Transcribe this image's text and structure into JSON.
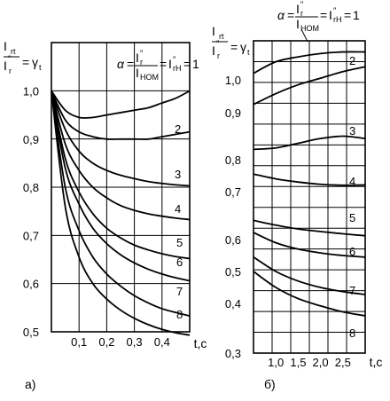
{
  "chart_data": [
    {
      "type": "line",
      "panel_label": "а)",
      "y_label": {
        "num": "I",
        "num_sub": "rt",
        "den": "I",
        "den_sup": "″",
        "den_sub": "r",
        "rhs": "γ",
        "rhs_sub": "t"
      },
      "legend": {
        "alpha": "α",
        "num": "I",
        "num_sup": "″",
        "num_sub": "r",
        "den": "I",
        "den_sub": "НОМ",
        "mid": "I",
        "mid_sup": "″",
        "mid_sub": "rН",
        "value": "1"
      },
      "x_unit": "t,c",
      "xlim": [
        0,
        0.5
      ],
      "ylim": [
        0.5,
        1.05
      ],
      "x_ticks": [
        0.1,
        0.2,
        0.3,
        0.4
      ],
      "x_tick_labels": [
        "0,1",
        "0,2",
        "0,3",
        "0,4"
      ],
      "y_ticks": [
        0.5,
        0.6,
        0.7,
        0.8,
        0.9,
        1.0
      ],
      "y_tick_labels": [
        "0,5",
        "0,6",
        "0,7",
        "0,8",
        "0,9",
        "1,0"
      ],
      "series": [
        {
          "x": [
            0,
            0.05,
            0.1,
            0.15,
            0.2,
            0.25,
            0.3,
            0.35,
            0.4,
            0.45,
            0.5
          ],
          "y": [
            1.0,
            0.96,
            0.945,
            0.945,
            0.95,
            0.955,
            0.96,
            0.965,
            0.975,
            0.985,
            1.0
          ]
        },
        {
          "name": "2",
          "x": [
            0,
            0.05,
            0.1,
            0.15,
            0.2,
            0.25,
            0.3,
            0.35,
            0.4,
            0.45,
            0.5
          ],
          "y": [
            1.0,
            0.94,
            0.915,
            0.905,
            0.9,
            0.9,
            0.9,
            0.9,
            0.905,
            0.91,
            0.915
          ]
        },
        {
          "name": "3",
          "x": [
            0,
            0.05,
            0.1,
            0.15,
            0.2,
            0.25,
            0.3,
            0.35,
            0.4,
            0.45,
            0.5
          ],
          "y": [
            1.0,
            0.92,
            0.875,
            0.85,
            0.835,
            0.825,
            0.818,
            0.812,
            0.808,
            0.805,
            0.803
          ]
        },
        {
          "name": "4",
          "x": [
            0,
            0.05,
            0.1,
            0.15,
            0.2,
            0.25,
            0.3,
            0.35,
            0.4,
            0.45,
            0.5
          ],
          "y": [
            1.0,
            0.89,
            0.835,
            0.8,
            0.778,
            0.762,
            0.752,
            0.745,
            0.74,
            0.736,
            0.733
          ]
        },
        {
          "name": "5",
          "x": [
            0,
            0.05,
            0.1,
            0.15,
            0.2,
            0.25,
            0.3,
            0.35,
            0.4,
            0.45,
            0.5
          ],
          "y": [
            1.0,
            0.86,
            0.79,
            0.745,
            0.715,
            0.695,
            0.68,
            0.67,
            0.662,
            0.656,
            0.652
          ]
        },
        {
          "name": "6",
          "x": [
            0,
            0.05,
            0.1,
            0.15,
            0.2,
            0.25,
            0.3,
            0.35,
            0.4,
            0.45,
            0.5
          ],
          "y": [
            1.0,
            0.84,
            0.765,
            0.715,
            0.683,
            0.66,
            0.643,
            0.63,
            0.62,
            0.612,
            0.606
          ]
        },
        {
          "name": "7",
          "x": [
            0,
            0.05,
            0.1,
            0.15,
            0.2,
            0.25,
            0.3,
            0.35,
            0.4,
            0.45,
            0.5
          ],
          "y": [
            1.0,
            0.8,
            0.71,
            0.655,
            0.62,
            0.595,
            0.575,
            0.56,
            0.548,
            0.54,
            0.533
          ]
        },
        {
          "name": "8",
          "x": [
            0,
            0.05,
            0.1,
            0.15,
            0.2,
            0.25,
            0.3,
            0.35,
            0.4,
            0.45,
            0.5
          ],
          "y": [
            1.0,
            0.76,
            0.655,
            0.6,
            0.568,
            0.545,
            0.528,
            0.515,
            0.505,
            0.498,
            0.493
          ]
        }
      ]
    },
    {
      "type": "line",
      "panel_label": "б)",
      "y_label": {
        "num": "I",
        "num_sub": "rt",
        "den": "I",
        "den_sup": "″",
        "den_sub": "r",
        "rhs": "γ",
        "rhs_sub": "t"
      },
      "legend": {
        "alpha": "α",
        "num": "I",
        "num_sup": "″",
        "num_sub": "r",
        "den": "I",
        "den_sub": "НОМ",
        "mid": "I",
        "mid_sup": "″",
        "mid_sub": "rН",
        "value": "1"
      },
      "x_unit": "t,c",
      "xlim": [
        0.5,
        3.0
      ],
      "x_ticks": [
        1.0,
        1.5,
        2.0,
        2.5
      ],
      "x_tick_labels": [
        "1,0",
        "1,5",
        "2,0",
        "2,5"
      ],
      "y_note": "Curve groups are vertically offset; each printed y tick label applies to the band beside it (upper group labels 1,0 0,9 0,8 0,7; lower group labels 0,6 0,5 0,4 0,3).",
      "y_tick_labels": [
        "1,0",
        "0,9",
        "0,8",
        "0,7",
        "0,6",
        "0,5",
        "0,4",
        "0,3"
      ],
      "series": [
        {
          "x": [
            0.5,
            1.0,
            1.5,
            2.0,
            2.5,
            3.0
          ],
          "y": [
            1.02,
            1.055,
            1.07,
            1.08,
            1.085,
            1.085
          ]
        },
        {
          "name": "2",
          "x": [
            0.5,
            1.0,
            1.5,
            2.0,
            2.5,
            3.0
          ],
          "y": [
            0.925,
            0.958,
            0.985,
            1.005,
            1.025,
            1.04
          ]
        },
        {
          "name": "3",
          "x": [
            0.5,
            1.0,
            1.5,
            2.0,
            2.5,
            3.0
          ],
          "y": [
            0.822,
            0.825,
            0.835,
            0.845,
            0.85,
            0.845
          ]
        },
        {
          "name": "4",
          "x": [
            0.5,
            1.0,
            1.5,
            2.0,
            2.5,
            3.0
          ],
          "y": [
            0.755,
            0.74,
            0.73,
            0.723,
            0.72,
            0.721
          ]
        },
        {
          "name": "5",
          "x": [
            0.5,
            1.0,
            1.5,
            2.0,
            2.5,
            3.0
          ],
          "y": [
            0.66,
            0.645,
            0.633,
            0.625,
            0.618,
            0.612
          ]
        },
        {
          "name": "6",
          "x": [
            0.5,
            1.0,
            1.5,
            2.0,
            2.5,
            3.0
          ],
          "y": [
            0.622,
            0.59,
            0.57,
            0.558,
            0.55,
            0.545
          ]
        },
        {
          "name": "7",
          "x": [
            0.5,
            1.0,
            1.5,
            2.0,
            2.5,
            3.0
          ],
          "y": [
            0.545,
            0.5,
            0.47,
            0.45,
            0.437,
            0.428
          ]
        },
        {
          "name": "8",
          "x": [
            0.5,
            1.0,
            1.5,
            2.0,
            2.5,
            3.0
          ],
          "y": [
            0.5,
            0.45,
            0.415,
            0.395,
            0.383,
            0.375
          ]
        }
      ]
    }
  ]
}
